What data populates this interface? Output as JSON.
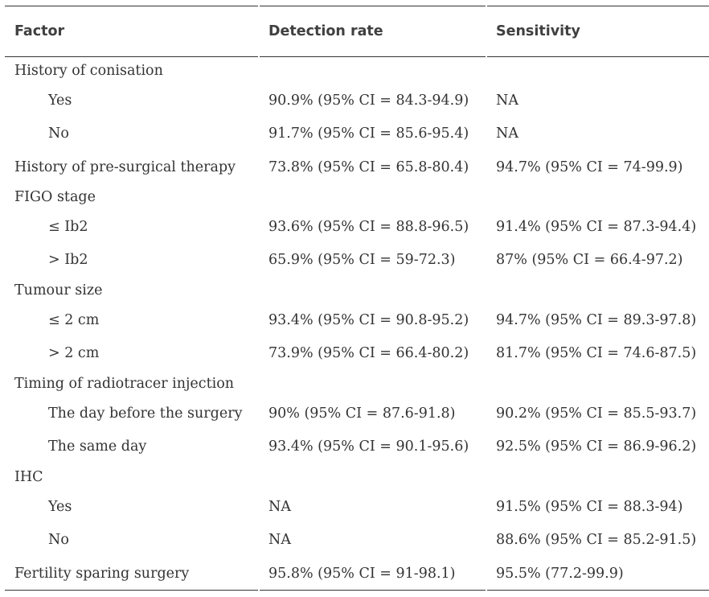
{
  "table": {
    "headers": {
      "factor": "Factor",
      "detection": "Detection rate",
      "sensitivity": "Sensitivity"
    },
    "rows": [
      {
        "label": "History of conisation",
        "detection": "",
        "sensitivity": ""
      },
      {
        "label": "Yes",
        "detection": "90.9% (95% CI = 84.3-94.9)",
        "sensitivity": "NA"
      },
      {
        "label": "No",
        "detection": "91.7% (95% CI = 85.6-95.4)",
        "sensitivity": "NA"
      },
      {
        "label": "History of pre-surgical therapy",
        "detection": "73.8% (95% CI = 65.8-80.4)",
        "sensitivity": "94.7% (95% CI = 74-99.9)"
      },
      {
        "label": "FIGO stage",
        "detection": "",
        "sensitivity": ""
      },
      {
        "label": "≤ Ib2",
        "detection": "93.6% (95% CI = 88.8-96.5)",
        "sensitivity": "91.4% (95% CI = 87.3-94.4)"
      },
      {
        "label": "> Ib2",
        "detection": "65.9% (95% CI = 59-72.3)",
        "sensitivity": "87% (95% CI = 66.4-97.2)"
      },
      {
        "label": "Tumour size",
        "detection": "",
        "sensitivity": ""
      },
      {
        "label": "≤ 2 cm",
        "detection": "93.4% (95% CI = 90.8-95.2)",
        "sensitivity": "94.7% (95% CI = 89.3-97.8)"
      },
      {
        "label": "> 2 cm",
        "detection": "73.9% (95% CI = 66.4-80.2)",
        "sensitivity": "81.7% (95% CI = 74.6-87.5)"
      },
      {
        "label": "Timing of radiotracer injection",
        "detection": "",
        "sensitivity": ""
      },
      {
        "label": "The day before the surgery",
        "detection": "90% (95% CI = 87.6-91.8)",
        "sensitivity": "90.2% (95% CI = 85.5-93.7)"
      },
      {
        "label": "The same day",
        "detection": "93.4% (95% CI = 90.1-95.6)",
        "sensitivity": "92.5% (95% CI = 86.9-96.2)"
      },
      {
        "label": "IHC",
        "detection": "",
        "sensitivity": ""
      },
      {
        "label": "Yes",
        "detection": "NA",
        "sensitivity": "91.5% (95% CI = 88.3-94)"
      },
      {
        "label": "No",
        "detection": "NA",
        "sensitivity": "88.6% (95% CI = 85.2-91.5)"
      },
      {
        "label": "Fertility sparing surgery",
        "detection": "95.8% (95% CI = 91-98.1)",
        "sensitivity": "95.5% (77.2-99.9)"
      }
    ]
  }
}
